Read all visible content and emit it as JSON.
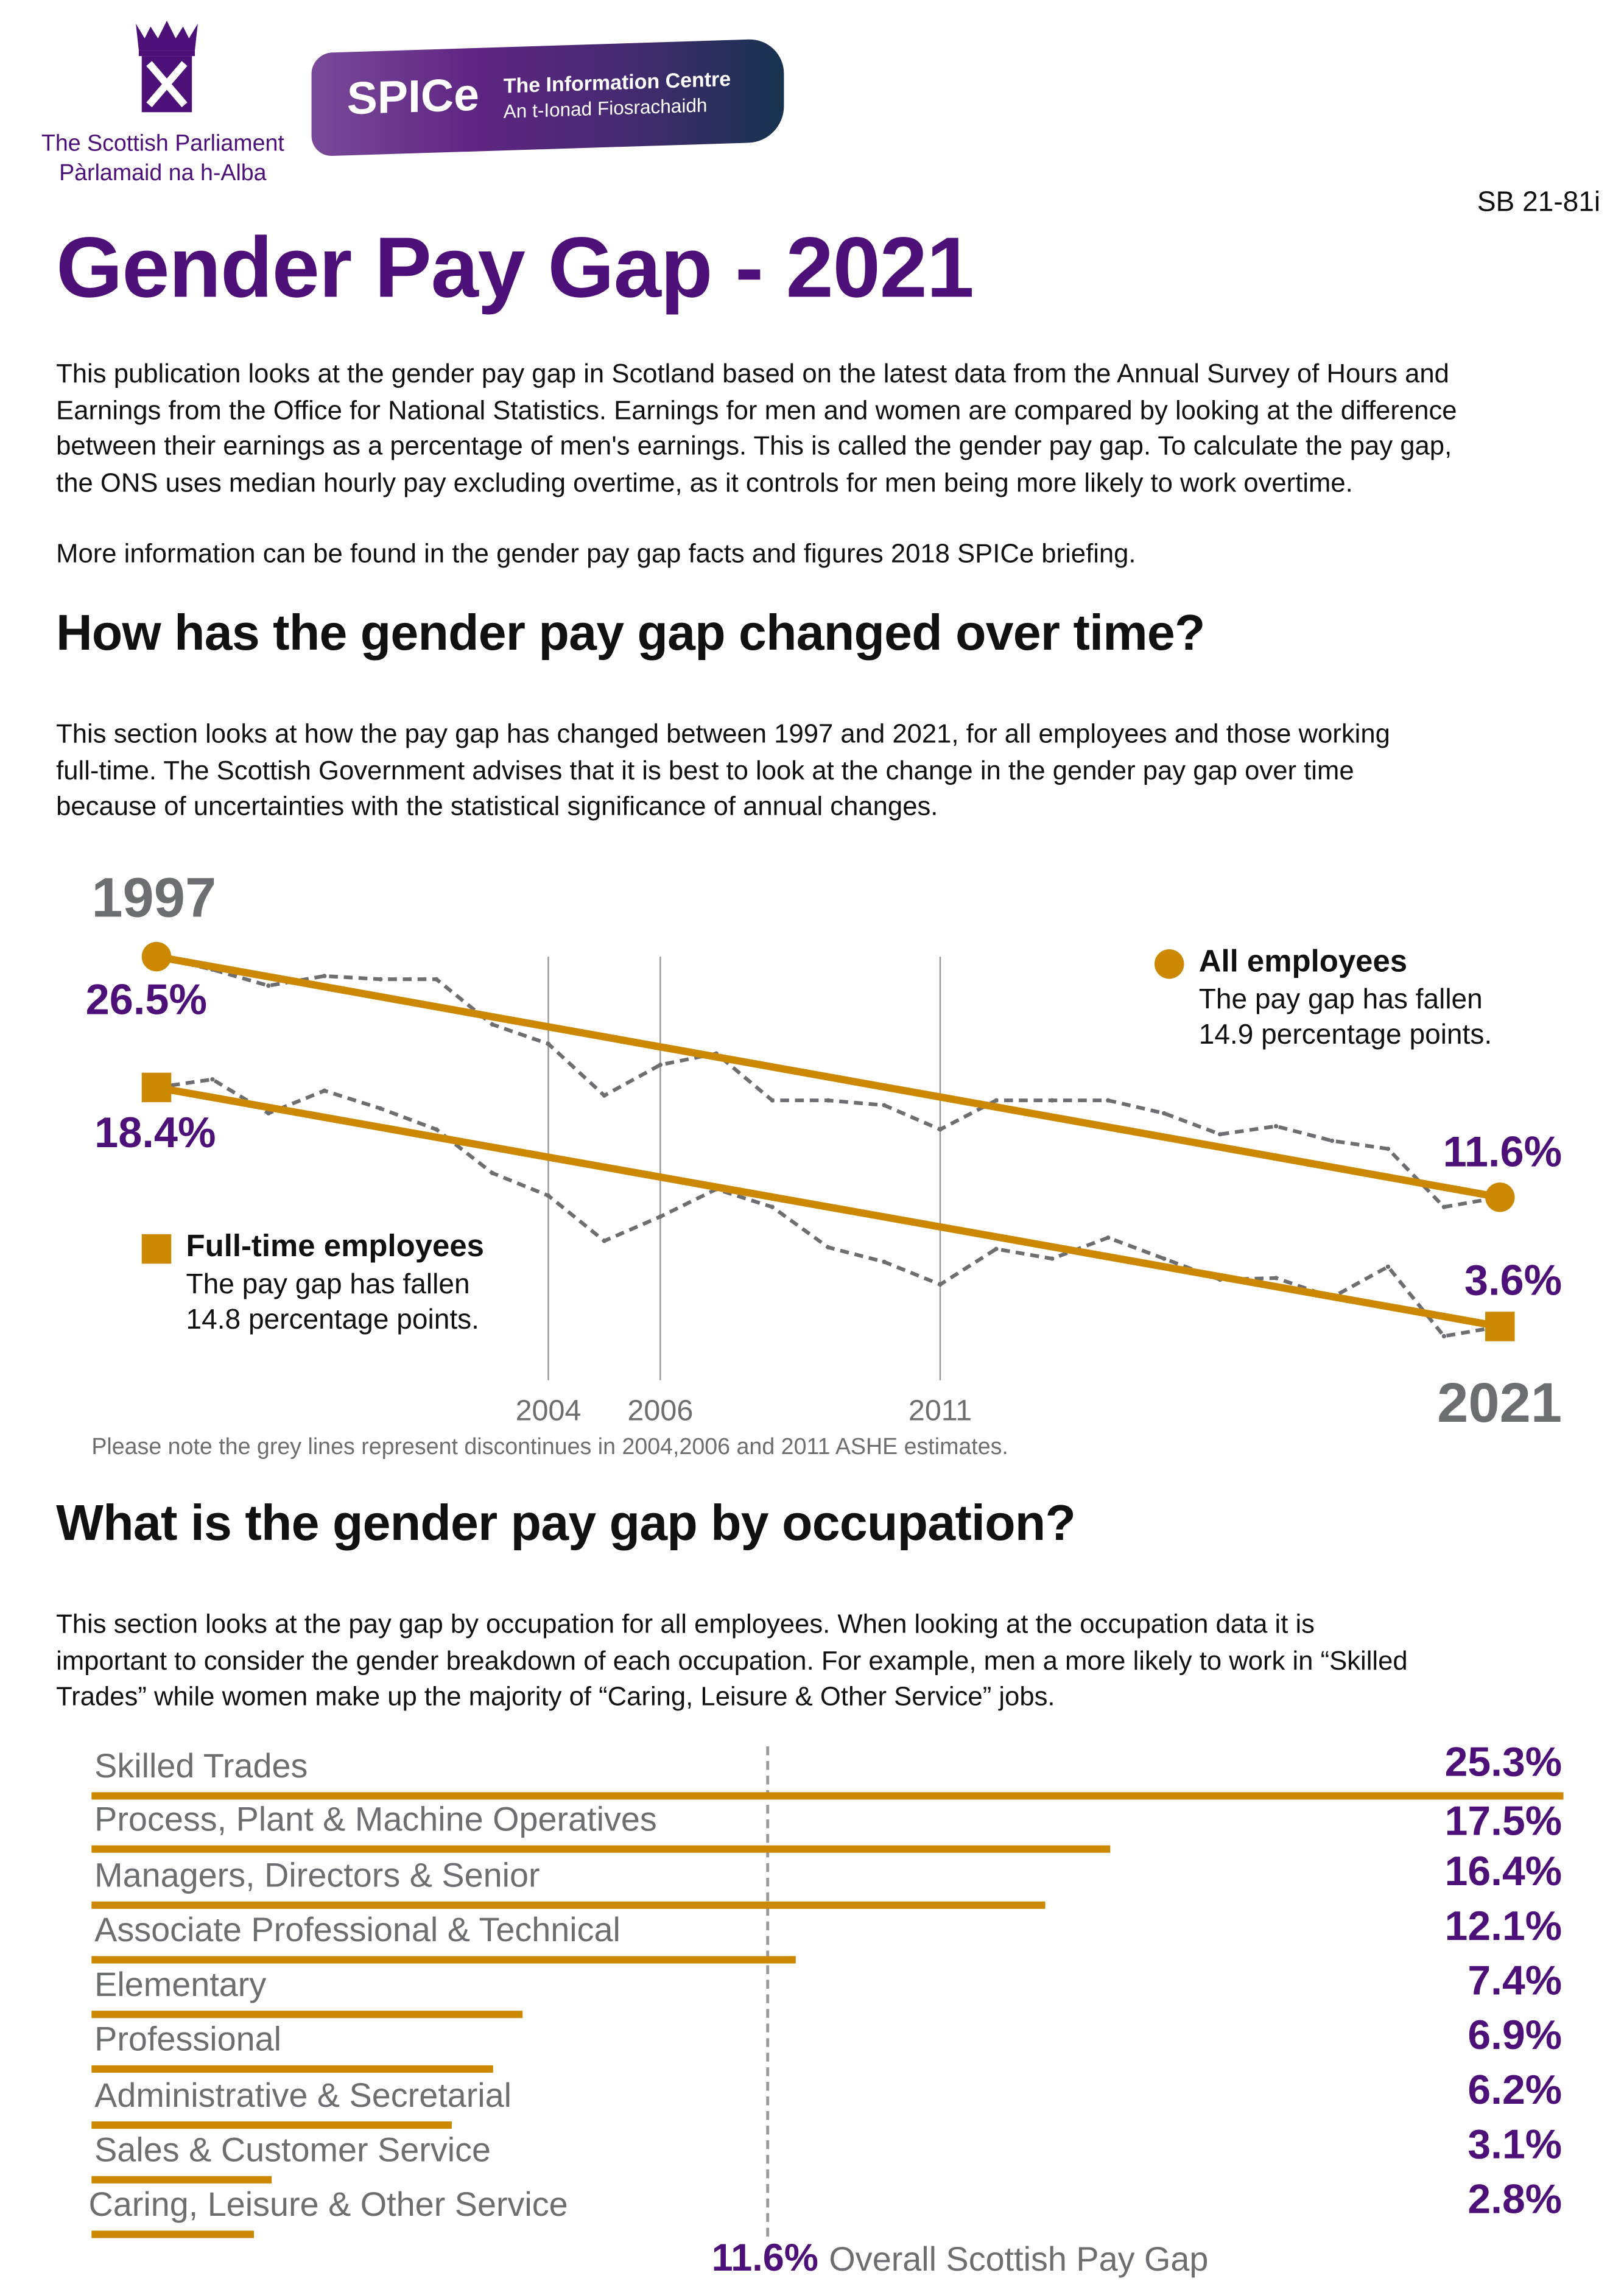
{
  "header": {
    "parliament_logo_text": [
      "The Scottish Parliament",
      "Pàrlamaid na h-Alba"
    ],
    "spice_logo": {
      "name": "SPICe",
      "line1": "The Information Centre",
      "line2": "An t-Ionad Fiosrachaidh"
    },
    "reference": "SB 21-81i",
    "title": "Gender Pay Gap - 2021"
  },
  "intro": {
    "lines": [
      "This publication looks at the gender pay gap in Scotland based on the latest data from the Annual Survey of Hours and",
      "Earnings from the Office for National Statistics. Earnings for men and women are compared by looking at the difference",
      "between their earnings as a percentage of men's earnings. This is called the gender pay gap. To calculate the pay gap,",
      "the ONS uses median hourly pay excluding overtime, as it controls for men being more likely to work overtime."
    ],
    "more_info": "More information can be found in the gender pay gap facts and figures 2018 SPICe briefing."
  },
  "section1": {
    "heading": "How has the gender pay gap changed over time?",
    "lines": [
      "This section looks at how the pay gap has changed between 1997 and 2021, for all employees and those working",
      "full-time. The Scottish Government advises that it is best to look at the change in the gender pay gap over time",
      "because of uncertainties with the statistical significance of annual changes."
    ]
  },
  "section2": {
    "heading": "What is the gender pay gap by occupation?",
    "lines": [
      "This section looks at the pay gap by occupation for all employees. When looking at the occupation data it is",
      "important to consider the gender breakdown of each occupation. For example, men a more likely to work in “Skilled",
      "Trades” while women make up the majority of “Caring, Leisure & Other Service” jobs."
    ]
  },
  "colors": {
    "purple": "#4d0f78",
    "gold": "#cc8800",
    "grey": "#6d6e71",
    "dashed": "#6d6e71"
  },
  "chart_data": [
    {
      "type": "line",
      "start_label": "1997",
      "end_label": "2021",
      "x": [
        1997,
        1998,
        1999,
        2000,
        2001,
        2002,
        2003,
        2004,
        2005,
        2006,
        2007,
        2008,
        2009,
        2010,
        2011,
        2012,
        2013,
        2014,
        2015,
        2016,
        2017,
        2018,
        2019,
        2020,
        2021
      ],
      "discontinuities": [
        "2004",
        "2006",
        "2011"
      ],
      "note": "Please note the grey lines represent discontinues in 2004,2006 and 2011 ASHE estimates.",
      "series": [
        {
          "name": "All employees",
          "marker": "circle",
          "description": [
            "The pay gap has fallen",
            "14.9 percentage points."
          ],
          "start_label": "26.5%",
          "end_label": "11.6%",
          "trend": [
            26.5,
            11.6
          ],
          "values": [
            26.5,
            25.7,
            24.7,
            25.3,
            25.1,
            25.1,
            22.3,
            21.1,
            17.9,
            19.8,
            20.5,
            17.6,
            17.6,
            17.3,
            15.8,
            17.6,
            17.6,
            17.6,
            16.8,
            15.5,
            16.0,
            15.1,
            14.6,
            11.0,
            11.6
          ]
        },
        {
          "name": "Full-time employees",
          "marker": "square",
          "description": [
            "The pay gap has fallen",
            "14.8 percentage points."
          ],
          "start_label": "18.4%",
          "end_label": "3.6%",
          "trend": [
            18.4,
            3.6
          ],
          "values": [
            18.4,
            18.9,
            16.8,
            18.2,
            17.1,
            15.8,
            13.1,
            11.7,
            8.9,
            10.4,
            12.1,
            11.0,
            8.5,
            7.6,
            6.2,
            8.4,
            7.8,
            9.1,
            7.8,
            6.5,
            6.6,
            5.4,
            7.3,
            3.0,
            3.6
          ]
        }
      ]
    },
    {
      "type": "bar",
      "orientation": "horizontal",
      "categories": [
        "Skilled Trades",
        "Process, Plant & Machine Operatives",
        "Managers, Directors & Senior",
        "Associate Professional & Technical",
        "Elementary",
        "Professional",
        "Administrative & Secretarial",
        "Sales & Customer Service",
        "Caring, Leisure & Other Service"
      ],
      "values": [
        25.3,
        17.5,
        16.4,
        12.1,
        7.4,
        6.9,
        6.2,
        3.1,
        2.8
      ],
      "labels": [
        "25.3%",
        "17.5%",
        "16.4%",
        "12.1%",
        "7.4%",
        "6.9%",
        "6.2%",
        "3.1%",
        "2.8%"
      ],
      "reference_line": {
        "value": 11.6,
        "label_value": "11.6%",
        "label_text": "Overall Scottish Pay Gap"
      }
    }
  ]
}
